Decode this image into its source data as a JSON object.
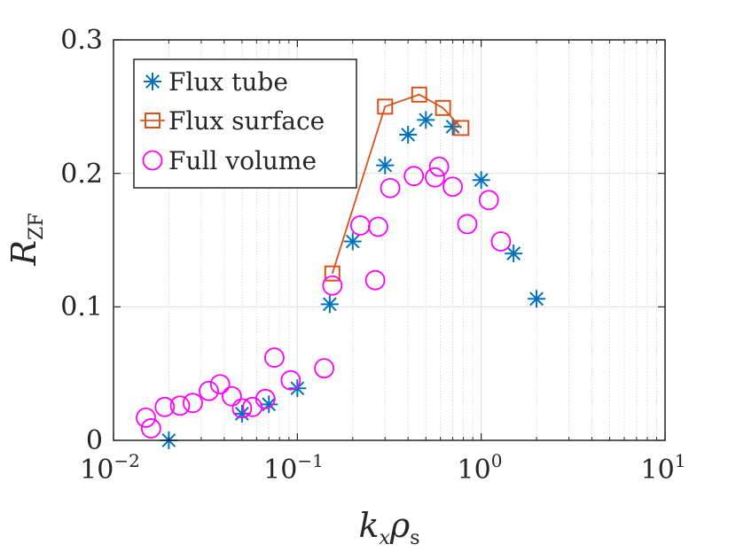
{
  "chart_data": {
    "type": "scatter",
    "title": "",
    "xscale": "log",
    "xlim": [
      0.01,
      10
    ],
    "ylim": [
      0,
      0.3
    ],
    "grid": true,
    "legend_position": "top-left",
    "xlabel": {
      "main": "k",
      "sub1": "x",
      "main2": "ρ",
      "sub2": "s"
    },
    "ylabel": {
      "main": "R",
      "sub": "ZF"
    },
    "x_ticks": [
      {
        "base": "10",
        "exp": "−2",
        "value": 0.01
      },
      {
        "base": "10",
        "exp": "−1",
        "value": 0.1
      },
      {
        "base": "10",
        "exp": "0",
        "value": 1
      },
      {
        "base": "10",
        "exp": "1",
        "value": 10
      }
    ],
    "y_ticks": [
      {
        "label": "0",
        "value": 0
      },
      {
        "label": "0.1",
        "value": 0.1
      },
      {
        "label": "0.2",
        "value": 0.2
      },
      {
        "label": "0.3",
        "value": 0.3
      }
    ],
    "series": [
      {
        "name": "Flux tube",
        "marker": "asterisk",
        "line": false,
        "color": "#0072bd",
        "x": [
          0.02,
          0.05,
          0.07,
          0.1,
          0.15,
          0.2,
          0.3,
          0.4,
          0.5,
          0.7,
          1.0,
          1.5,
          2.0
        ],
        "y": [
          0.0,
          0.02,
          0.027,
          0.039,
          0.102,
          0.149,
          0.206,
          0.229,
          0.24,
          0.235,
          0.195,
          0.14,
          0.106
        ]
      },
      {
        "name": "Flux surface",
        "marker": "square",
        "line": true,
        "color": "#d95319",
        "x": [
          0.155,
          0.3,
          0.46,
          0.62,
          0.78
        ],
        "y": [
          0.125,
          0.25,
          0.259,
          0.249,
          0.234
        ]
      },
      {
        "name": "Full volume",
        "marker": "circle",
        "line": false,
        "color": "#ff00ff",
        "x": [
          0.015,
          0.016,
          0.019,
          0.023,
          0.027,
          0.033,
          0.038,
          0.044,
          0.05,
          0.057,
          0.067,
          0.075,
          0.092,
          0.14,
          0.155,
          0.22,
          0.265,
          0.275,
          0.32,
          0.43,
          0.56,
          0.59,
          0.7,
          0.84,
          1.1,
          1.28
        ],
        "y": [
          0.017,
          0.009,
          0.025,
          0.026,
          0.028,
          0.037,
          0.042,
          0.033,
          0.024,
          0.025,
          0.031,
          0.062,
          0.045,
          0.054,
          0.116,
          0.161,
          0.12,
          0.16,
          0.189,
          0.198,
          0.197,
          0.205,
          0.19,
          0.162,
          0.18,
          0.149
        ]
      }
    ]
  }
}
